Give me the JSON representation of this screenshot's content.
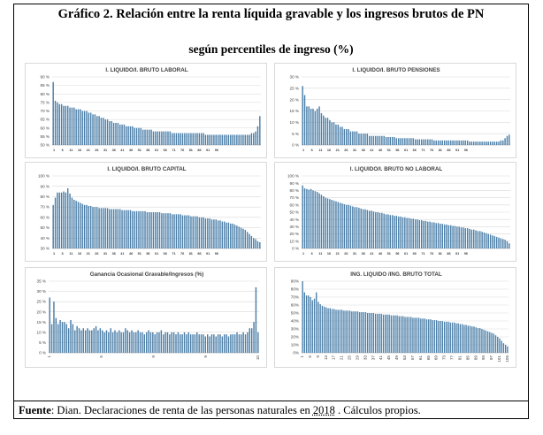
{
  "title_line1": "Gráfico 2. Relación entre la renta líquida gravable y los ingresos brutos de PN",
  "title_line2": "según percentiles de ingreso (%)",
  "source": {
    "label": "Fuente",
    "text_before": ": Dian. Declaraciones de renta de las personas naturales en ",
    "year": "2018",
    "text_after": " . Cálculos propios."
  },
  "colors": {
    "bar": "#4a7ea8",
    "grid": "#d9d9d9",
    "axis_text": "#404040"
  },
  "chart_data": [
    {
      "type": "bar",
      "title": "I. LIQUIDO/I. BRUTO LABORAL",
      "yticks": [
        "50 %",
        "55 %",
        "60 %",
        "65 %",
        "70 %",
        "75 %",
        "80 %",
        "85 %",
        "90 %"
      ],
      "ylim": [
        50,
        90
      ],
      "xticks": [
        "1",
        "6",
        "11",
        "16",
        "21",
        "26",
        "31",
        "36",
        "41",
        "46",
        "51",
        "56",
        "61",
        "66",
        "71",
        "76",
        "81",
        "86",
        "91",
        "96"
      ],
      "grid": true,
      "n": 100,
      "values": [
        87,
        76,
        75,
        74,
        74,
        73,
        73,
        73,
        72,
        72,
        72,
        71,
        71,
        71,
        70,
        70,
        70,
        69,
        69,
        68,
        68,
        67,
        67,
        66,
        66,
        65,
        65,
        64,
        64,
        63,
        63,
        63,
        62,
        62,
        62,
        61,
        61,
        61,
        61,
        60,
        60,
        60,
        60,
        59,
        59,
        59,
        59,
        59,
        58,
        58,
        58,
        58,
        58,
        58,
        58,
        58,
        58,
        57,
        57,
        57,
        57,
        57,
        57,
        57,
        57,
        57,
        57,
        57,
        57,
        57,
        57,
        57,
        57,
        56,
        56,
        56,
        56,
        56,
        56,
        56,
        56,
        56,
        56,
        56,
        56,
        56,
        56,
        56,
        56,
        56,
        56,
        56,
        56,
        56,
        56,
        57,
        57,
        58,
        61,
        67
      ]
    },
    {
      "type": "bar",
      "title": "I. LIQUIDO/I. BRUTO PENSIONES",
      "yticks": [
        "0 %",
        "5 %",
        "10 %",
        "15 %",
        "20 %",
        "25 %",
        "30 %"
      ],
      "ylim": [
        0,
        30
      ],
      "xticks": [
        "1",
        "6",
        "11",
        "16",
        "21",
        "26",
        "31",
        "36",
        "41",
        "46",
        "51",
        "56",
        "61",
        "66",
        "71",
        "76",
        "81",
        "86",
        "91",
        "96"
      ],
      "grid": true,
      "n": 100,
      "values": [
        26,
        22,
        17,
        17,
        16,
        16,
        15,
        16,
        17,
        14,
        13,
        12,
        12,
        11,
        10,
        10,
        9,
        9,
        8,
        8,
        7,
        7,
        7,
        6,
        6,
        6,
        6,
        5,
        5,
        5,
        5,
        5,
        4,
        4,
        4,
        4,
        4,
        4,
        4,
        4,
        3.5,
        3.5,
        3.5,
        3.5,
        3.5,
        3,
        3,
        3,
        3,
        3,
        3,
        3,
        3,
        3,
        2.5,
        2.5,
        2.5,
        2.5,
        2.5,
        2.5,
        2.5,
        2.5,
        2.5,
        2,
        2,
        2,
        2,
        2,
        2,
        2,
        2,
        2,
        2,
        2,
        2,
        2,
        2,
        2,
        2,
        2,
        1.5,
        1.5,
        1.5,
        1.5,
        1.5,
        1.5,
        1.5,
        1.5,
        1.5,
        1.5,
        1.5,
        1.5,
        1.5,
        1.5,
        1.5,
        2,
        2,
        3,
        4,
        4.5
      ]
    },
    {
      "type": "bar",
      "title": "I. LIQUIDO/I. BRUTO CAPITAL",
      "yticks": [
        "30 %",
        "40 %",
        "50 %",
        "60 %",
        "70 %",
        "80 %",
        "90 %",
        "100 %"
      ],
      "ylim": [
        30,
        100
      ],
      "xticks": [
        "1",
        "6",
        "11",
        "16",
        "21",
        "26",
        "31",
        "36",
        "41",
        "46",
        "51",
        "56",
        "61",
        "66",
        "71",
        "76",
        "81",
        "86",
        "91",
        "96"
      ],
      "grid": true,
      "n": 100,
      "values": [
        72,
        79,
        84,
        84,
        84,
        85,
        84,
        88,
        83,
        79,
        77,
        76,
        75,
        74,
        73,
        72,
        72,
        71,
        71,
        70,
        70,
        70,
        69,
        69,
        69,
        69,
        69,
        68,
        68,
        68,
        68,
        68,
        68,
        67,
        67,
        67,
        67,
        67,
        66,
        66,
        66,
        66,
        66,
        66,
        66,
        65,
        65,
        65,
        65,
        65,
        65,
        65,
        64,
        64,
        64,
        64,
        64,
        63,
        63,
        63,
        63,
        63,
        62,
        62,
        62,
        62,
        61,
        61,
        61,
        61,
        60,
        60,
        60,
        59,
        59,
        59,
        58,
        58,
        58,
        57,
        57,
        56,
        56,
        55,
        55,
        54,
        54,
        53,
        52,
        51,
        50,
        49,
        48,
        46,
        44,
        42,
        40,
        39,
        37,
        36
      ]
    },
    {
      "type": "bar",
      "title": "I. LIQUIDO/I. BRUTO NO LABORAL",
      "yticks": [
        "0 %",
        "10 %",
        "20 %",
        "30 %",
        "40 %",
        "50 %",
        "60 %",
        "70 %",
        "80 %",
        "90 %",
        "100 %"
      ],
      "ylim": [
        0,
        100
      ],
      "xticks": [
        "1",
        "6",
        "11",
        "16",
        "21",
        "26",
        "31",
        "36",
        "41",
        "46",
        "51",
        "56",
        "61",
        "66",
        "71",
        "76",
        "81",
        "86",
        "91",
        "96"
      ],
      "grid": true,
      "n": 100,
      "values": [
        87,
        83,
        82,
        81,
        82,
        80,
        79,
        78,
        76,
        74,
        72,
        70,
        69,
        68,
        67,
        66,
        65,
        64,
        63,
        62,
        61,
        60,
        60,
        59,
        58,
        57,
        57,
        56,
        55,
        54,
        54,
        53,
        52,
        52,
        51,
        50,
        50,
        49,
        49,
        48,
        47,
        47,
        46,
        46,
        45,
        45,
        44,
        44,
        43,
        43,
        42,
        42,
        41,
        41,
        40,
        40,
        39,
        39,
        38,
        38,
        37,
        37,
        36,
        36,
        35,
        35,
        34,
        34,
        33,
        33,
        32,
        32,
        31,
        31,
        30,
        30,
        29,
        29,
        28,
        28,
        27,
        26,
        26,
        25,
        24,
        24,
        23,
        22,
        21,
        20,
        19,
        18,
        17,
        16,
        15,
        14,
        13,
        12,
        10,
        7
      ]
    },
    {
      "type": "bar",
      "title": "Ganancia Ocasional Gravable/Ingresos (%)",
      "yticks": [
        "0 %",
        "5 %",
        "10 %",
        "15 %",
        "20 %",
        "25 %",
        "30 %",
        "35 %"
      ],
      "ylim": [
        0,
        35
      ],
      "xticks": [
        "1",
        "5",
        "9",
        "9",
        "10"
      ],
      "grid": true,
      "n": 100,
      "values": [
        27,
        14,
        25,
        17,
        14,
        16,
        15,
        15,
        14,
        12,
        16,
        14,
        11,
        13,
        12,
        11,
        12,
        11,
        12,
        11,
        11,
        12,
        13,
        11,
        12,
        11,
        10,
        11,
        10,
        12,
        10,
        11,
        10,
        11,
        10,
        10,
        12,
        11,
        10,
        11,
        10,
        10,
        11,
        10,
        10,
        9,
        10,
        11,
        10,
        10,
        9,
        10,
        10,
        11,
        9,
        10,
        10,
        9,
        10,
        10,
        9,
        10,
        9,
        9,
        10,
        9,
        10,
        9,
        9,
        9,
        10,
        9,
        9,
        9,
        8,
        9,
        8,
        9,
        9,
        8,
        9,
        9,
        8,
        9,
        9,
        8,
        9,
        9,
        9,
        10,
        9,
        9,
        10,
        9,
        10,
        12,
        12,
        15,
        32,
        10
      ]
    },
    {
      "type": "bar",
      "title": "ING. LIQUIDO /ING. BRUTO TOTAL",
      "yticks": [
        "0%",
        "10%",
        "20%",
        "30%",
        "40%",
        "50%",
        "60%",
        "70%",
        "80%",
        "90%"
      ],
      "ylim": [
        0,
        90
      ],
      "xticks": [
        "1",
        "5",
        "9",
        "13",
        "17",
        "21",
        "25",
        "29",
        "33",
        "37",
        "41",
        "45",
        "49",
        "53",
        "57",
        "61",
        "65",
        "69",
        "73",
        "77",
        "81",
        "85",
        "89",
        "93",
        "97",
        "101",
        "105"
      ],
      "grid": true,
      "n": 105,
      "values": [
        90,
        76,
        72,
        72,
        70,
        66,
        68,
        76,
        64,
        61,
        59,
        58,
        57,
        56,
        56,
        55,
        55,
        54,
        54,
        54,
        54,
        53,
        53,
        53,
        53,
        52,
        52,
        52,
        52,
        51,
        51,
        51,
        51,
        50,
        50,
        50,
        50,
        49,
        49,
        49,
        49,
        48,
        48,
        48,
        48,
        47,
        47,
        47,
        47,
        46,
        46,
        46,
        45,
        45,
        45,
        45,
        44,
        44,
        44,
        44,
        43,
        43,
        43,
        42,
        42,
        42,
        41,
        41,
        41,
        40,
        40,
        40,
        39,
        39,
        39,
        38,
        38,
        38,
        37,
        37,
        36,
        36,
        35,
        35,
        34,
        34,
        33,
        33,
        32,
        31,
        31,
        30,
        29,
        28,
        27,
        26,
        25,
        24,
        22,
        20,
        18,
        15,
        12,
        10,
        8
      ]
    }
  ]
}
